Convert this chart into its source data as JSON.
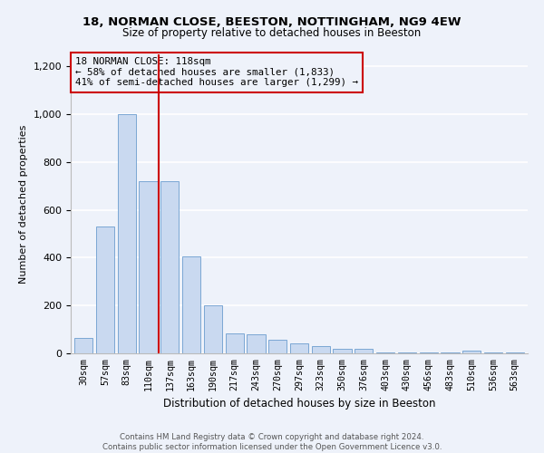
{
  "title_line1": "18, NORMAN CLOSE, BEESTON, NOTTINGHAM, NG9 4EW",
  "title_line2": "Size of property relative to detached houses in Beeston",
  "xlabel": "Distribution of detached houses by size in Beeston",
  "ylabel": "Number of detached properties",
  "categories": [
    "30sqm",
    "57sqm",
    "83sqm",
    "110sqm",
    "137sqm",
    "163sqm",
    "190sqm",
    "217sqm",
    "243sqm",
    "270sqm",
    "297sqm",
    "323sqm",
    "350sqm",
    "376sqm",
    "403sqm",
    "430sqm",
    "456sqm",
    "483sqm",
    "510sqm",
    "536sqm",
    "563sqm"
  ],
  "values": [
    65,
    530,
    1000,
    720,
    720,
    405,
    200,
    85,
    80,
    55,
    42,
    32,
    18,
    18,
    5,
    5,
    3,
    3,
    10,
    3,
    3
  ],
  "bar_color": "#c9d9f0",
  "bar_edge_color": "#7ba7d4",
  "highlight_index": 3,
  "highlight_line_color": "#cc0000",
  "annotation_line1": "18 NORMAN CLOSE: 118sqm",
  "annotation_line2": "← 58% of detached houses are smaller (1,833)",
  "annotation_line3": "41% of semi-detached houses are larger (1,299) →",
  "background_color": "#eef2fa",
  "grid_color": "#ffffff",
  "ylim": [
    0,
    1250
  ],
  "yticks": [
    0,
    200,
    400,
    600,
    800,
    1000,
    1200
  ],
  "footer_line1": "Contains HM Land Registry data © Crown copyright and database right 2024.",
  "footer_line2": "Contains public sector information licensed under the Open Government Licence v3.0."
}
